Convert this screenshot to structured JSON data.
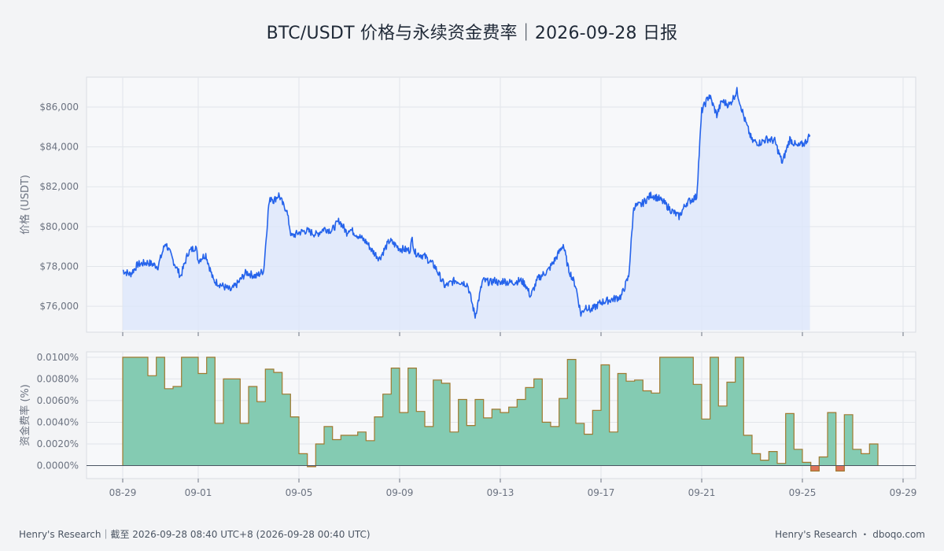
{
  "title": "BTC/USDT 价格与永续资金费率｜2026-09-28 日报",
  "footer": {
    "left": "Henry's Research｜截至 2026-09-28 08:40 UTC+8 (2026-09-28 00:40 UTC)",
    "right": "Henry's Research ・ dboqo.com"
  },
  "colors": {
    "price_line": "#2563eb",
    "price_fill": "#dbe6fb",
    "funding_positive": "#84cbb2",
    "funding_negative": "#e0745c",
    "funding_edge": "#a0792f",
    "panel_bg": "#f7f8fa",
    "grid": "#e2e5ea"
  },
  "chart_data": [
    {
      "type": "line",
      "panel": "price",
      "ylabel": "价格 (USDT)",
      "ylim": [
        74700,
        87500
      ],
      "yticks": [
        76000,
        78000,
        80000,
        82000,
        84000,
        86000
      ],
      "ytick_labels": [
        "$76,000",
        "$78,000",
        "$80,000",
        "$82,000",
        "$84,000",
        "$86,000"
      ],
      "x_range_days": [
        "2026-08-29",
        "2026-09-28"
      ],
      "series": [
        {
          "x_days": [
            0,
            0.3,
            0.6,
            1.0,
            1.4,
            1.7,
            2.0,
            2.3,
            2.6,
            2.9,
            3.0,
            3.3,
            3.6,
            4.0,
            4.3,
            4.6,
            4.9,
            5.3,
            5.6,
            5.8,
            5.9,
            6.0,
            6.2,
            6.4,
            6.5,
            6.7,
            7.0,
            7.3,
            7.7,
            8.0,
            8.3,
            8.6,
            8.9,
            9.0,
            9.4,
            9.7,
            9.9,
            10.2,
            10.6,
            11.0,
            11.4,
            11.5,
            11.6,
            12.0,
            12.4,
            12.8,
            13.2,
            13.5,
            13.7,
            14.0,
            14.3,
            14.6,
            14.8,
            15.0,
            15.1,
            15.3,
            15.5,
            15.8,
            16.0,
            16.2,
            16.5,
            16.9,
            17.2,
            17.5,
            17.7,
            18.0,
            18.2,
            18.4,
            18.6,
            19.0,
            19.3,
            19.6,
            19.8,
            20.1,
            20.3,
            20.6,
            21.0,
            21.3,
            21.5,
            21.8,
            22.1,
            22.4,
            22.8,
            23.0,
            23.3,
            23.6,
            23.8,
            24.1,
            24.4,
            24.7,
            25.0,
            25.3,
            25.6,
            25.9,
            26.2,
            26.5,
            26.8,
            27.1,
            27.3
          ],
          "y": [
            77800,
            77600,
            78100,
            78200,
            78000,
            79200,
            78300,
            77500,
            78700,
            79000,
            78300,
            78600,
            77300,
            77000,
            76800,
            77200,
            77700,
            77500,
            77800,
            81100,
            81500,
            81300,
            81600,
            81000,
            80900,
            79500,
            79700,
            79800,
            79600,
            79900,
            79800,
            80300,
            79700,
            79900,
            79500,
            79200,
            78800,
            78400,
            79300,
            78900,
            78800,
            79400,
            78700,
            78500,
            78000,
            77000,
            77300,
            77200,
            77100,
            75500,
            77300,
            77200,
            77300,
            77100,
            77300,
            77200,
            77200,
            77300,
            77100,
            76500,
            77400,
            77800,
            78400,
            79100,
            77900,
            77000,
            75600,
            76000,
            75800,
            76200,
            76300,
            76400,
            76500,
            77500,
            81000,
            81100,
            81600,
            81400,
            81200,
            80800,
            80500,
            81200,
            81500,
            85800,
            86600,
            85600,
            86300,
            86100,
            86800,
            85400,
            84300,
            84200,
            84400,
            84300,
            83200,
            84400,
            84000,
            84200,
            84600
          ],
          "note_extra": [
            0
          ]
        }
      ]
    },
    {
      "type": "step",
      "panel": "funding",
      "ylabel": "资金费率 (%)",
      "ylim": [
        -0.0012,
        0.0105
      ],
      "yticks": [
        0,
        0.002,
        0.004,
        0.006,
        0.008,
        0.01
      ],
      "ytick_labels": [
        "0.0000%",
        "0.0020%",
        "0.0040%",
        "0.0060%",
        "0.0080%",
        "0.0100%"
      ],
      "step_hours": 8,
      "values": [
        0.01,
        0.01,
        0.01,
        0.0083,
        0.01,
        0.0071,
        0.0073,
        0.01,
        0.01,
        0.0085,
        0.01,
        0.0039,
        0.008,
        0.008,
        0.0039,
        0.0073,
        0.0059,
        0.0089,
        0.0086,
        0.0066,
        0.0045,
        0.0011,
        -0.0001,
        0.002,
        0.0036,
        0.0024,
        0.0028,
        0.0028,
        0.0031,
        0.0023,
        0.0045,
        0.0066,
        0.009,
        0.0049,
        0.009,
        0.005,
        0.0036,
        0.0079,
        0.0076,
        0.0031,
        0.0061,
        0.0037,
        0.0061,
        0.0044,
        0.0052,
        0.0049,
        0.0054,
        0.0061,
        0.0072,
        0.008,
        0.004,
        0.0036,
        0.0062,
        0.0098,
        0.0039,
        0.0029,
        0.0051,
        0.0093,
        0.0031,
        0.0085,
        0.0078,
        0.0079,
        0.0069,
        0.0067,
        0.01,
        0.01,
        0.01,
        0.01,
        0.0075,
        0.0043,
        0.01,
        0.0055,
        0.0077,
        0.01,
        0.0028,
        0.0011,
        0.0005,
        0.0013,
        0.0002,
        0.0048,
        0.0015,
        0.0003,
        -0.0005,
        0.0008,
        0.0049,
        -0.0005,
        0.0047,
        0.0015,
        0.0011,
        0.002
      ]
    }
  ],
  "x_axis": {
    "ticks": [
      "08-29",
      "09-01",
      "09-05",
      "09-09",
      "09-13",
      "09-17",
      "09-21",
      "09-25",
      "09-29"
    ],
    "tick_day_offsets": [
      0,
      3,
      7,
      11,
      15,
      19,
      23,
      27,
      31
    ]
  }
}
